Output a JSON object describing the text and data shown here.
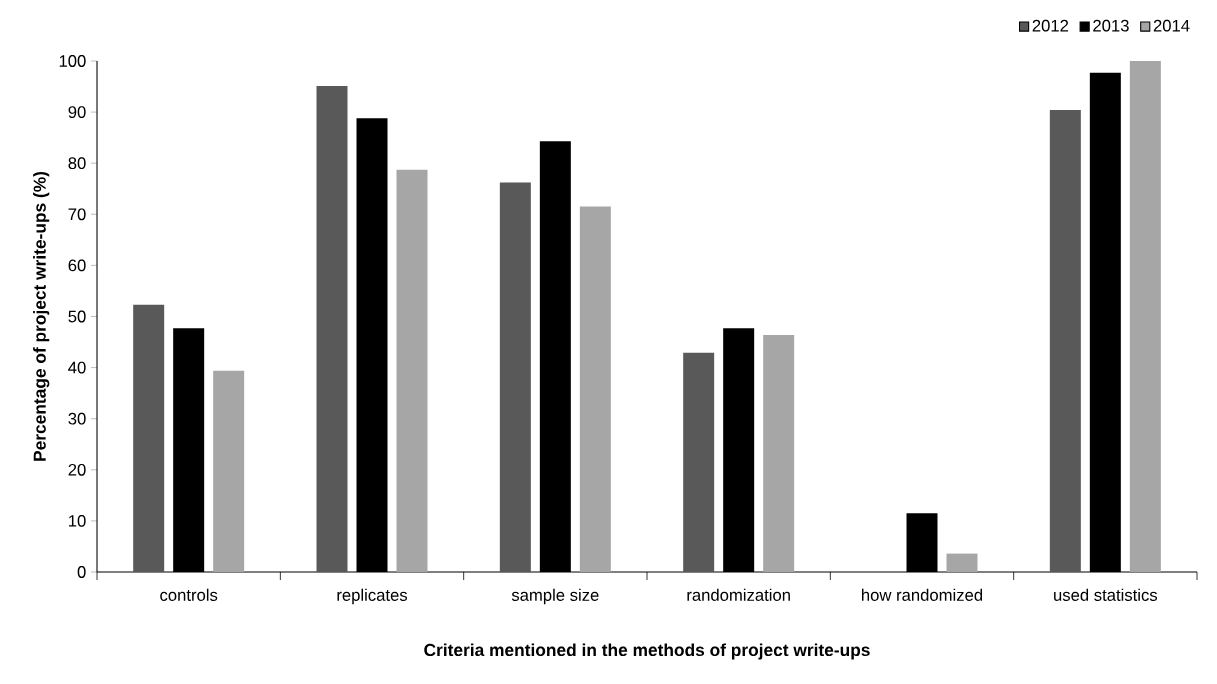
{
  "chart_data": {
    "type": "bar",
    "xlabel": "Criteria mentioned in the methods of project write-ups",
    "ylabel": "Percentage of project write-ups (%)",
    "categories": [
      "controls",
      "replicates",
      "sample size",
      "randomization",
      "how randomized",
      "used statistics"
    ],
    "series": [
      {
        "name": "2012",
        "color": "#595959",
        "values": [
          52.3,
          95.1,
          76.2,
          42.9,
          0,
          90.4
        ]
      },
      {
        "name": "2013",
        "color": "#000000",
        "values": [
          47.7,
          88.8,
          84.3,
          47.7,
          11.5,
          97.7
        ]
      },
      {
        "name": "2014",
        "color": "#a6a6a6",
        "values": [
          39.4,
          78.7,
          71.5,
          46.4,
          3.6,
          100
        ]
      }
    ],
    "ylim": [
      0,
      100
    ],
    "yticks": [
      0,
      10,
      20,
      30,
      40,
      50,
      60,
      70,
      80,
      90,
      100
    ],
    "legend": "top right",
    "grid": false
  }
}
